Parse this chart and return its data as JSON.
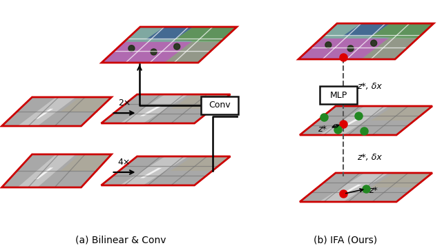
{
  "bg_color": "#ffffff",
  "caption_a": "(a) Bilinear & Conv",
  "caption_b": "(b) IFA (Ours)",
  "conv_label": "Conv",
  "mlp_label": "MLP",
  "label_2x": "2×",
  "label_4x": "4×",
  "label_zstar_dx_upper": "z*, δx",
  "label_zstar_dx_lower": "z*, δx",
  "label_zstar_mid": "z*",
  "label_zstar_bot": "z*",
  "border_color": "#cc0000",
  "dot_red": "#dd0000",
  "dot_green": "#228822",
  "box_color": "#ffffff",
  "box_border": "#111111",
  "dashed_color": "#555555",
  "seg_purple": "#b06ab0",
  "seg_teal": "#5090a0",
  "seg_green_r": "#60a060",
  "seg_blue": "#4070b0",
  "road_gray": "#a8a8a8",
  "road_light": "#c8c8c8",
  "bld_color": "#b0a890",
  "grid_color_white": "#dddddd",
  "grid_color_dark": "#707070"
}
